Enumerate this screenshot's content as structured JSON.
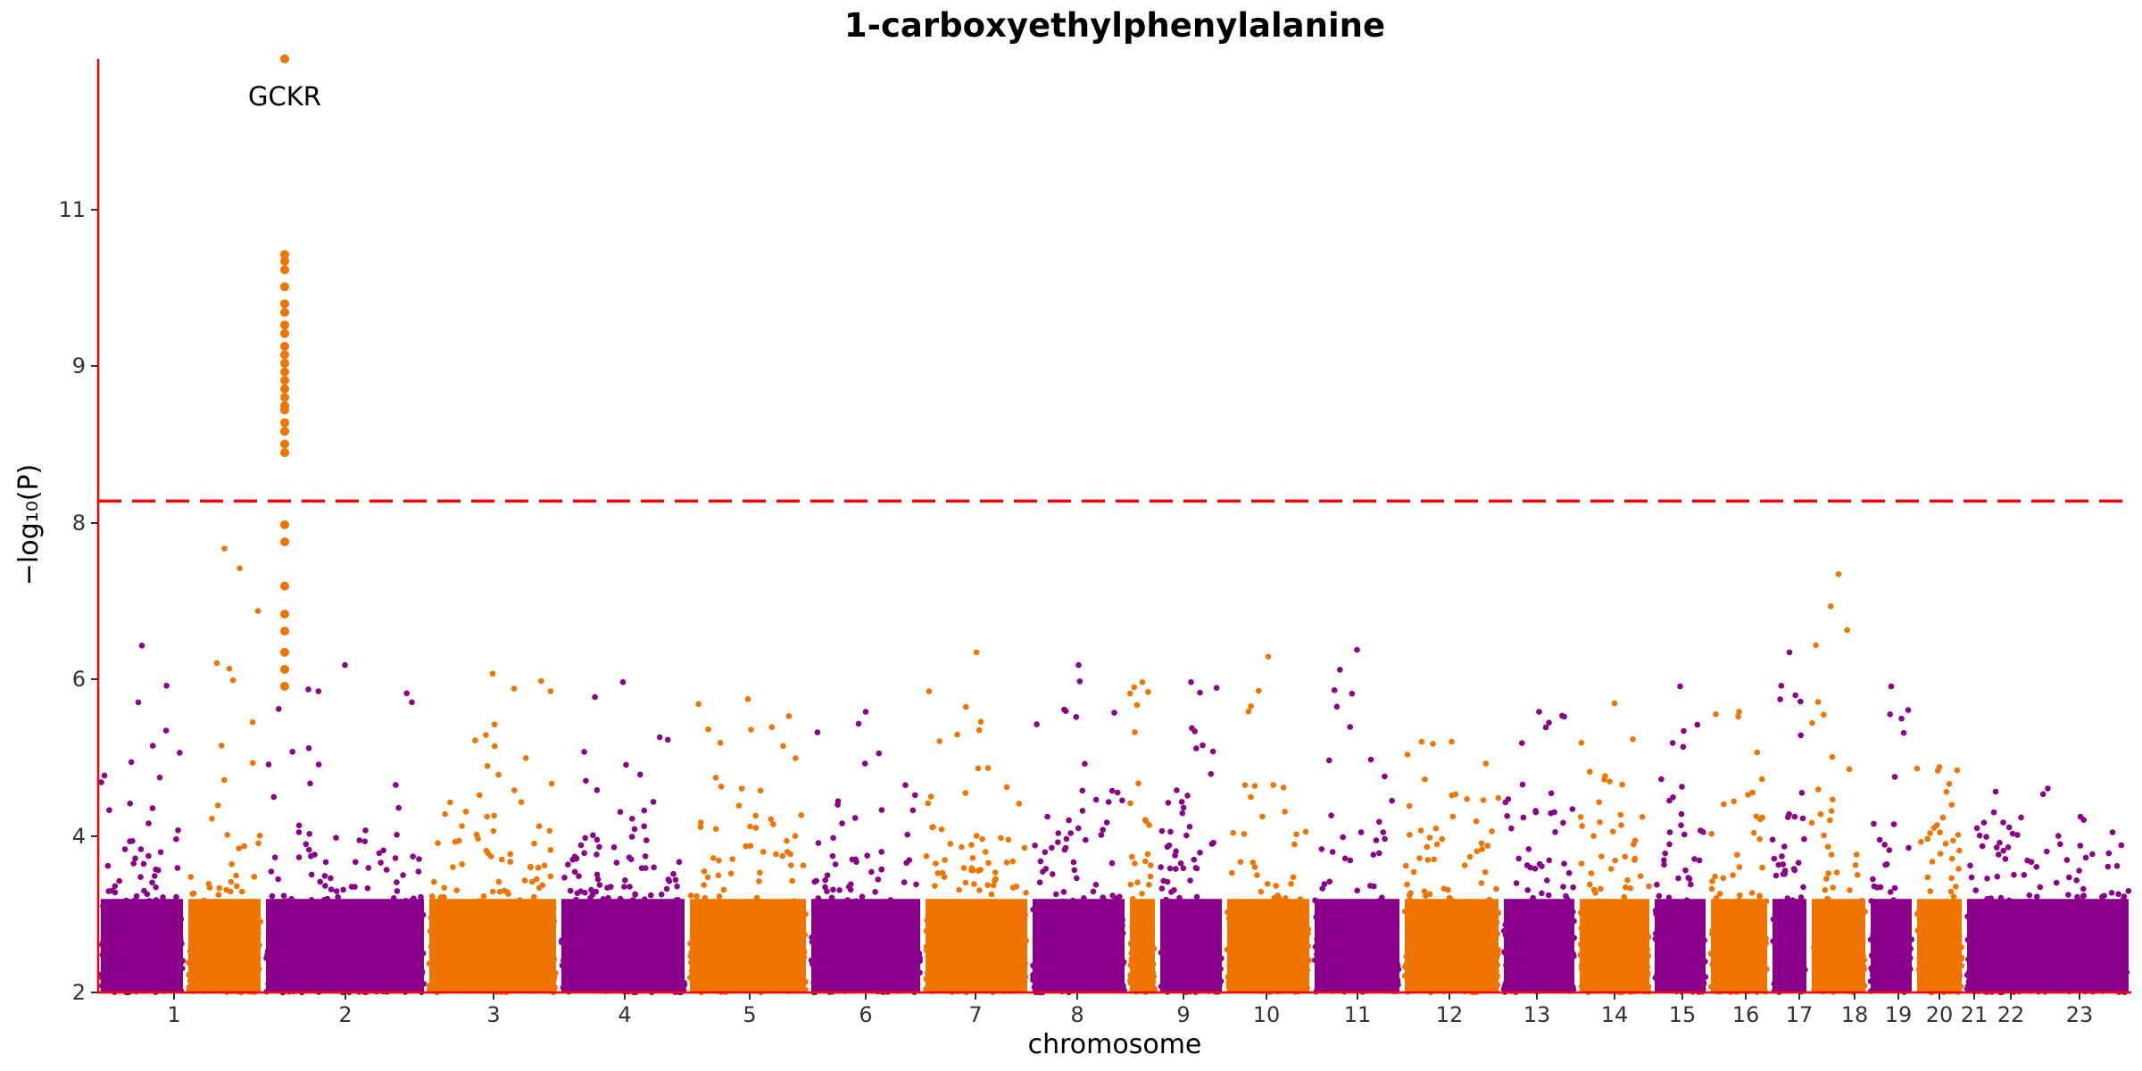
{
  "chart_data": {
    "type": "scatter",
    "subtype": "manhattan",
    "title": "1-carboxyethylphenylalanine",
    "xlabel": "chromosome",
    "ylabel": "−log₁₀(P)",
    "y_ticks": [
      2,
      4,
      6,
      8,
      9,
      11
    ],
    "ylim": [
      2,
      12.98
    ],
    "threshold": {
      "value": 7.78,
      "color": "#ff0000",
      "style": "dashed"
    },
    "axis_color": "#ff0000",
    "grid": false,
    "colors": {
      "odd": "#8b008b",
      "even": "#ef7400"
    },
    "chromosomes": [
      {
        "label": "1",
        "start": 0,
        "end": 250,
        "color": "odd",
        "max": 6.08
      },
      {
        "label": "2",
        "start": 1.2,
        "end": 2.95,
        "color": "even",
        "max": 7.22
      },
      {
        "label": "3",
        "start": 2.95,
        "end": 4.4,
        "color": "odd",
        "max": 5.85
      },
      {
        "label": "4",
        "start": 4.4,
        "end": 5.8,
        "color": "even",
        "max": 5.75
      },
      {
        "label": "5",
        "start": 5.8,
        "end": 7.15,
        "color": "odd",
        "max": 5.65
      },
      {
        "label": "6",
        "start": 7.15,
        "end": 8.4,
        "color": "even",
        "max": 5.45
      },
      {
        "label": "7",
        "start": 8.4,
        "end": 9.55,
        "color": "odd",
        "max": 5.3
      },
      {
        "label": "8",
        "start": 9.55,
        "end": 10.65,
        "color": "even",
        "max": 6.0
      },
      {
        "label": "9",
        "start": 10.65,
        "end": 11.6,
        "color": "odd",
        "max": 5.85
      },
      {
        "label": "10",
        "start": 11.6,
        "end": 12.55,
        "color": "even",
        "max": 5.65
      },
      {
        "label": "11",
        "start": 12.55,
        "end": 13.5,
        "color": "odd",
        "max": 5.65
      },
      {
        "label": "12",
        "start": 13.5,
        "end": 14.5,
        "color": "even",
        "max": 5.95
      },
      {
        "label": "13",
        "start": 14.5,
        "end": 15.35,
        "color": "odd",
        "max": 6.03
      },
      {
        "label": "14",
        "start": 15.35,
        "end": 16.15,
        "color": "even",
        "max": 4.95
      },
      {
        "label": "15",
        "start": 16.15,
        "end": 16.95,
        "color": "odd",
        "max": 5.3
      },
      {
        "label": "16",
        "start": 16.95,
        "end": 17.65,
        "color": "even",
        "max": 5.4
      },
      {
        "label": "17",
        "start": 17.65,
        "end": 18.3,
        "color": "odd",
        "max": 5.6
      },
      {
        "label": "18",
        "start": 18.3,
        "end": 18.95,
        "color": "even",
        "max": 5.3
      },
      {
        "label": "19",
        "start": 18.95,
        "end": 19.45,
        "color": "odd",
        "max": 6.0
      },
      {
        "label": "20",
        "start": 19.45,
        "end": 20.0,
        "color": "even",
        "max": 6.92
      },
      {
        "label": "21",
        "start": 20.0,
        "end": 20.35,
        "color": "odd",
        "max": 5.6
      },
      {
        "label": "22",
        "start": 20.35,
        "end": 20.75,
        "color": "even",
        "max": 4.65
      },
      {
        "label": "23",
        "start": 20.75,
        "end": 22.0,
        "color": "odd",
        "max": 4.4
      }
    ],
    "annotations": [
      {
        "text": "GCKR",
        "chromosome": "2",
        "value": 12.98
      }
    ],
    "peak_points": [
      {
        "chromosome": "2",
        "values": [
          12.98,
          10.68,
          10.6,
          10.5,
          10.3,
          10.1,
          10.0,
          9.85,
          9.75,
          9.6,
          9.5,
          9.4,
          9.3,
          9.2,
          9.1,
          9.0,
          8.9,
          8.85,
          8.7,
          8.6,
          8.45,
          8.35,
          7.5,
          7.3,
          6.78,
          6.45,
          6.25,
          6.0,
          5.8,
          5.6
        ]
      }
    ]
  }
}
